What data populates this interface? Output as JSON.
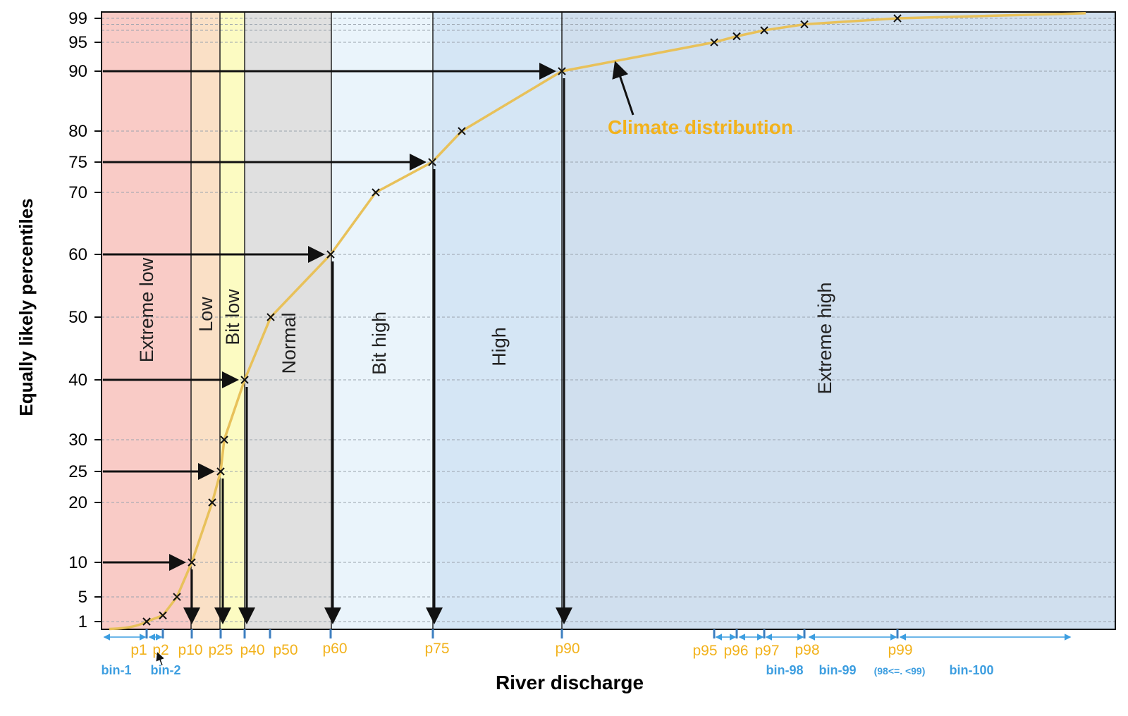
{
  "chart_data": {
    "type": "line",
    "title": "",
    "xlabel": "River discharge",
    "ylabel": "Equally likely percentiles",
    "ylim": [
      0,
      100
    ],
    "yticks": [
      1,
      5,
      10,
      20,
      25,
      30,
      40,
      50,
      60,
      70,
      75,
      80,
      90,
      95,
      99
    ],
    "ytick_labels": [
      "1",
      "5",
      "10",
      "20",
      "25",
      "30",
      "40",
      "50",
      "60",
      "70",
      "75",
      "80",
      "90",
      "95",
      "99"
    ],
    "grid": true,
    "series": [
      {
        "name": "Climate distribution",
        "color": "#e8c15a",
        "markers": [
          {
            "x": 0.15,
            "y": 1
          },
          {
            "x": 0.25,
            "y": 2
          },
          {
            "x": 0.4,
            "y": 5
          },
          {
            "x": 0.5,
            "y": 10
          },
          {
            "x": 1.2,
            "y": 20
          },
          {
            "x": 1.4,
            "y": 25
          },
          {
            "x": 1.55,
            "y": 30
          },
          {
            "x": 2.1,
            "y": 40
          },
          {
            "x": 2.9,
            "y": 50
          },
          {
            "x": 4.8,
            "y": 60
          },
          {
            "x": 6.8,
            "y": 70
          },
          {
            "x": 8.9,
            "y": 75
          },
          {
            "x": 11.4,
            "y": 80
          },
          {
            "x": 20,
            "y": 90
          },
          {
            "x": 50,
            "y": 95
          },
          {
            "x": 60,
            "y": 96
          },
          {
            "x": 70,
            "y": 97
          },
          {
            "x": 85,
            "y": 98
          },
          {
            "x": 120,
            "y": 99
          }
        ]
      }
    ],
    "categories": [
      "Extreme low",
      "Low",
      "Bit low",
      "Normal",
      "Bit high",
      "High",
      "Extreme high"
    ],
    "category_colors": [
      "#f9cbc6",
      "#fae0c6",
      "#fcfbc2",
      "#e0e0e0",
      "#eaf4fb",
      "#d5e6f5",
      "#d0dfee"
    ],
    "percentile_labels": [
      "p1",
      "p2",
      "p10",
      "p25",
      "p40",
      "p50",
      "p60",
      "p75",
      "p90",
      "p95",
      "p96",
      "p97",
      "p98",
      "p99"
    ],
    "bin_labels": [
      "bin-1",
      "bin-2",
      "bin-98",
      "bin-99",
      "(98<=. <99)",
      "bin-100"
    ],
    "annotation": "Climate distribution"
  }
}
